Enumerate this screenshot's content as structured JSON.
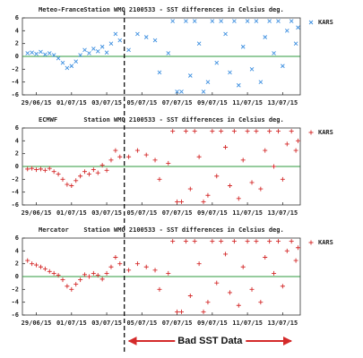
{
  "chart_data": [
    {
      "type": "scatter",
      "source": "Meteo-France",
      "title": "Station WMO 2100533 - SST differences in Celsius deg.",
      "marker": "x",
      "hline": 0,
      "hline_color": "#2e9a3e",
      "xlim": [
        "2015-06-28T05:00",
        "2015-07-14T00:00"
      ],
      "ylim": [
        -6,
        6
      ],
      "yticks": [
        -6,
        -4,
        -2,
        0,
        2,
        4,
        6
      ],
      "xticks": [
        {
          "value": "2015-06-29T00:00",
          "label": "29/06/15"
        },
        {
          "value": "2015-07-01T00:00",
          "label": "01/07/15"
        },
        {
          "value": "2015-07-03T00:00",
          "label": "03/07/15"
        },
        {
          "value": "2015-07-05T00:00",
          "label": "05/07/15"
        },
        {
          "value": "2015-07-07T00:00",
          "label": "07/07/15"
        },
        {
          "value": "2015-07-09T00:00",
          "label": "09/07/15"
        },
        {
          "value": "2015-07-11T00:00",
          "label": "11/07/15"
        },
        {
          "value": "2015-07-13T00:00",
          "label": "13/07/15"
        }
      ],
      "x": [
        "2015-06-28T12:00",
        "2015-06-28T18:00",
        "2015-06-29T00:00",
        "2015-06-29T06:00",
        "2015-06-29T12:00",
        "2015-06-29T18:00",
        "2015-06-30T00:00",
        "2015-06-30T06:00",
        "2015-06-30T12:00",
        "2015-06-30T18:00",
        "2015-07-01T00:00",
        "2015-07-01T06:00",
        "2015-07-01T12:00",
        "2015-07-01T18:00",
        "2015-07-02T00:00",
        "2015-07-02T06:00",
        "2015-07-02T12:00",
        "2015-07-02T18:00",
        "2015-07-03T00:00",
        "2015-07-03T06:00",
        "2015-07-03T12:00",
        "2015-07-03T18:00",
        "2015-07-04T06:00",
        "2015-07-04T18:00",
        "2015-07-05T06:00",
        "2015-07-05T18:00",
        "2015-07-06T00:00",
        "2015-07-06T12:00",
        "2015-07-06T18:00",
        "2015-07-07T00:00",
        "2015-07-07T06:00",
        "2015-07-07T12:00",
        "2015-07-07T18:00",
        "2015-07-08T00:00",
        "2015-07-08T06:00",
        "2015-07-08T12:00",
        "2015-07-08T18:00",
        "2015-07-09T00:00",
        "2015-07-09T06:00",
        "2015-07-09T12:00",
        "2015-07-09T18:00",
        "2015-07-10T00:00",
        "2015-07-10T06:00",
        "2015-07-10T12:00",
        "2015-07-10T18:00",
        "2015-07-11T00:00",
        "2015-07-11T06:00",
        "2015-07-11T12:00",
        "2015-07-11T18:00",
        "2015-07-12T00:00",
        "2015-07-12T06:00",
        "2015-07-12T12:00",
        "2015-07-12T18:00",
        "2015-07-13T00:00",
        "2015-07-13T06:00",
        "2015-07-13T12:00",
        "2015-07-13T18:00",
        "2015-07-13T21:00"
      ],
      "series": [
        {
          "name": "KARS",
          "color": "#3d8fe0",
          "values": [
            0.5,
            0.6,
            0.4,
            0.7,
            0.3,
            0.5,
            0.2,
            -0.3,
            -1.0,
            -1.8,
            -1.5,
            -0.8,
            0.2,
            1.0,
            0.5,
            1.2,
            0.8,
            1.5,
            0.6,
            2.0,
            3.5,
            2.5,
            1.0,
            3.5,
            3.0,
            2.5,
            -2.5,
            0.5,
            5.5,
            -5.5,
            -5.5,
            5.5,
            -3.0,
            5.5,
            2.0,
            -5.5,
            -4.0,
            5.5,
            -1.0,
            5.5,
            3.5,
            -2.5,
            5.5,
            -4.5,
            1.5,
            5.5,
            -2.0,
            5.5,
            -4.0,
            3.0,
            5.5,
            0.5,
            5.5,
            -1.5,
            4.0,
            5.5,
            2.0,
            4.5
          ]
        }
      ]
    },
    {
      "type": "scatter",
      "source": "ECMWF",
      "title": "Station WMO 2100533 - SST differences in Celsius deg.",
      "marker": "+",
      "hline": 0,
      "hline_color": "#2e9a3e",
      "xlim": [
        "2015-06-28T05:00",
        "2015-07-14T00:00"
      ],
      "ylim": [
        -6,
        6
      ],
      "yticks": [
        -6,
        -4,
        -2,
        0,
        2,
        4,
        6
      ],
      "xticks": [
        {
          "value": "2015-06-29T00:00",
          "label": "29/06/15"
        },
        {
          "value": "2015-07-01T00:00",
          "label": "01/07/15"
        },
        {
          "value": "2015-07-03T00:00",
          "label": "03/07/15"
        },
        {
          "value": "2015-07-05T00:00",
          "label": "05/07/15"
        },
        {
          "value": "2015-07-07T00:00",
          "label": "07/07/15"
        },
        {
          "value": "2015-07-09T00:00",
          "label": "09/07/15"
        },
        {
          "value": "2015-07-11T00:00",
          "label": "11/07/15"
        },
        {
          "value": "2015-07-13T00:00",
          "label": "13/07/15"
        }
      ],
      "x": [
        "2015-06-28T12:00",
        "2015-06-28T18:00",
        "2015-06-29T00:00",
        "2015-06-29T06:00",
        "2015-06-29T12:00",
        "2015-06-29T18:00",
        "2015-06-30T00:00",
        "2015-06-30T06:00",
        "2015-06-30T12:00",
        "2015-06-30T18:00",
        "2015-07-01T00:00",
        "2015-07-01T06:00",
        "2015-07-01T12:00",
        "2015-07-01T18:00",
        "2015-07-02T00:00",
        "2015-07-02T06:00",
        "2015-07-02T12:00",
        "2015-07-02T18:00",
        "2015-07-03T00:00",
        "2015-07-03T06:00",
        "2015-07-03T12:00",
        "2015-07-03T18:00",
        "2015-07-04T06:00",
        "2015-07-04T18:00",
        "2015-07-05T06:00",
        "2015-07-05T18:00",
        "2015-07-06T00:00",
        "2015-07-06T12:00",
        "2015-07-06T18:00",
        "2015-07-07T00:00",
        "2015-07-07T06:00",
        "2015-07-07T12:00",
        "2015-07-07T18:00",
        "2015-07-08T00:00",
        "2015-07-08T06:00",
        "2015-07-08T12:00",
        "2015-07-08T18:00",
        "2015-07-09T00:00",
        "2015-07-09T06:00",
        "2015-07-09T12:00",
        "2015-07-09T18:00",
        "2015-07-10T00:00",
        "2015-07-10T06:00",
        "2015-07-10T12:00",
        "2015-07-10T18:00",
        "2015-07-11T00:00",
        "2015-07-11T06:00",
        "2015-07-11T12:00",
        "2015-07-11T18:00",
        "2015-07-12T00:00",
        "2015-07-12T06:00",
        "2015-07-12T12:00",
        "2015-07-12T18:00",
        "2015-07-13T00:00",
        "2015-07-13T06:00",
        "2015-07-13T12:00",
        "2015-07-13T18:00",
        "2015-07-13T21:00"
      ],
      "series": [
        {
          "name": "KARS",
          "color": "#d42a2a",
          "values": [
            -0.4,
            -0.3,
            -0.5,
            -0.4,
            -0.6,
            -0.3,
            -0.8,
            -1.2,
            -2.0,
            -2.8,
            -3.0,
            -2.2,
            -1.5,
            -0.8,
            -1.2,
            -0.5,
            -1.0,
            0.2,
            -0.6,
            1.0,
            2.5,
            1.5,
            1.5,
            2.5,
            1.8,
            1.0,
            -2.0,
            0.5,
            5.5,
            -5.5,
            -5.5,
            5.5,
            -3.5,
            5.5,
            1.5,
            -5.5,
            -4.5,
            5.5,
            -1.5,
            5.5,
            3.0,
            -3.0,
            5.5,
            -5.0,
            1.0,
            5.5,
            -2.5,
            5.5,
            -3.5,
            2.5,
            5.5,
            0.0,
            5.5,
            -2.0,
            3.5,
            5.5,
            2.5,
            4.0
          ]
        }
      ]
    },
    {
      "type": "scatter",
      "source": "Mercator",
      "title": "Station WMO 2100533 - SST differences in Celsius deg.",
      "marker": "+",
      "hline": 0,
      "hline_color": "#2e9a3e",
      "xlim": [
        "2015-06-28T05:00",
        "2015-07-14T00:00"
      ],
      "ylim": [
        -6,
        6
      ],
      "yticks": [
        -6,
        -4,
        -2,
        0,
        2,
        4,
        6
      ],
      "xticks": [
        {
          "value": "2015-06-29T00:00",
          "label": "29/06/15"
        },
        {
          "value": "2015-07-01T00:00",
          "label": "01/07/15"
        },
        {
          "value": "2015-07-03T00:00",
          "label": "03/07/15"
        },
        {
          "value": "2015-07-05T00:00",
          "label": "05/07/15"
        },
        {
          "value": "2015-07-07T00:00",
          "label": "07/07/15"
        },
        {
          "value": "2015-07-09T00:00",
          "label": "09/07/15"
        },
        {
          "value": "2015-07-11T00:00",
          "label": "11/07/15"
        },
        {
          "value": "2015-07-13T00:00",
          "label": "13/07/15"
        }
      ],
      "x": [
        "2015-06-28T12:00",
        "2015-06-28T18:00",
        "2015-06-29T00:00",
        "2015-06-29T06:00",
        "2015-06-29T12:00",
        "2015-06-29T18:00",
        "2015-06-30T00:00",
        "2015-06-30T06:00",
        "2015-06-30T12:00",
        "2015-06-30T18:00",
        "2015-07-01T00:00",
        "2015-07-01T06:00",
        "2015-07-01T12:00",
        "2015-07-01T18:00",
        "2015-07-02T00:00",
        "2015-07-02T06:00",
        "2015-07-02T12:00",
        "2015-07-02T18:00",
        "2015-07-03T00:00",
        "2015-07-03T06:00",
        "2015-07-03T12:00",
        "2015-07-03T18:00",
        "2015-07-04T06:00",
        "2015-07-04T18:00",
        "2015-07-05T06:00",
        "2015-07-05T18:00",
        "2015-07-06T00:00",
        "2015-07-06T12:00",
        "2015-07-06T18:00",
        "2015-07-07T00:00",
        "2015-07-07T06:00",
        "2015-07-07T12:00",
        "2015-07-07T18:00",
        "2015-07-08T00:00",
        "2015-07-08T06:00",
        "2015-07-08T12:00",
        "2015-07-08T18:00",
        "2015-07-09T00:00",
        "2015-07-09T06:00",
        "2015-07-09T12:00",
        "2015-07-09T18:00",
        "2015-07-10T00:00",
        "2015-07-10T06:00",
        "2015-07-10T12:00",
        "2015-07-10T18:00",
        "2015-07-11T00:00",
        "2015-07-11T06:00",
        "2015-07-11T12:00",
        "2015-07-11T18:00",
        "2015-07-12T00:00",
        "2015-07-12T06:00",
        "2015-07-12T12:00",
        "2015-07-12T18:00",
        "2015-07-13T00:00",
        "2015-07-13T06:00",
        "2015-07-13T12:00",
        "2015-07-13T18:00",
        "2015-07-13T21:00"
      ],
      "series": [
        {
          "name": "KARS",
          "color": "#d42a2a",
          "values": [
            2.5,
            2.0,
            1.8,
            1.5,
            1.2,
            0.8,
            0.5,
            0.2,
            -0.5,
            -1.5,
            -2.0,
            -1.2,
            -0.5,
            0.3,
            0.0,
            0.5,
            0.2,
            -0.4,
            0.5,
            1.5,
            3.0,
            2.0,
            1.0,
            2.0,
            1.5,
            1.0,
            -2.0,
            0.5,
            5.5,
            -5.5,
            -5.5,
            5.5,
            -3.0,
            5.5,
            2.0,
            -5.5,
            -4.0,
            5.5,
            -1.0,
            5.5,
            3.5,
            -2.5,
            5.5,
            -4.5,
            1.5,
            5.5,
            -2.0,
            5.5,
            -4.0,
            3.0,
            5.5,
            0.5,
            5.5,
            -1.5,
            4.0,
            5.5,
            2.5,
            4.5
          ]
        }
      ]
    }
  ],
  "annotation": {
    "text": "Bad SST Data",
    "start": "2015-07-04T00:00"
  }
}
